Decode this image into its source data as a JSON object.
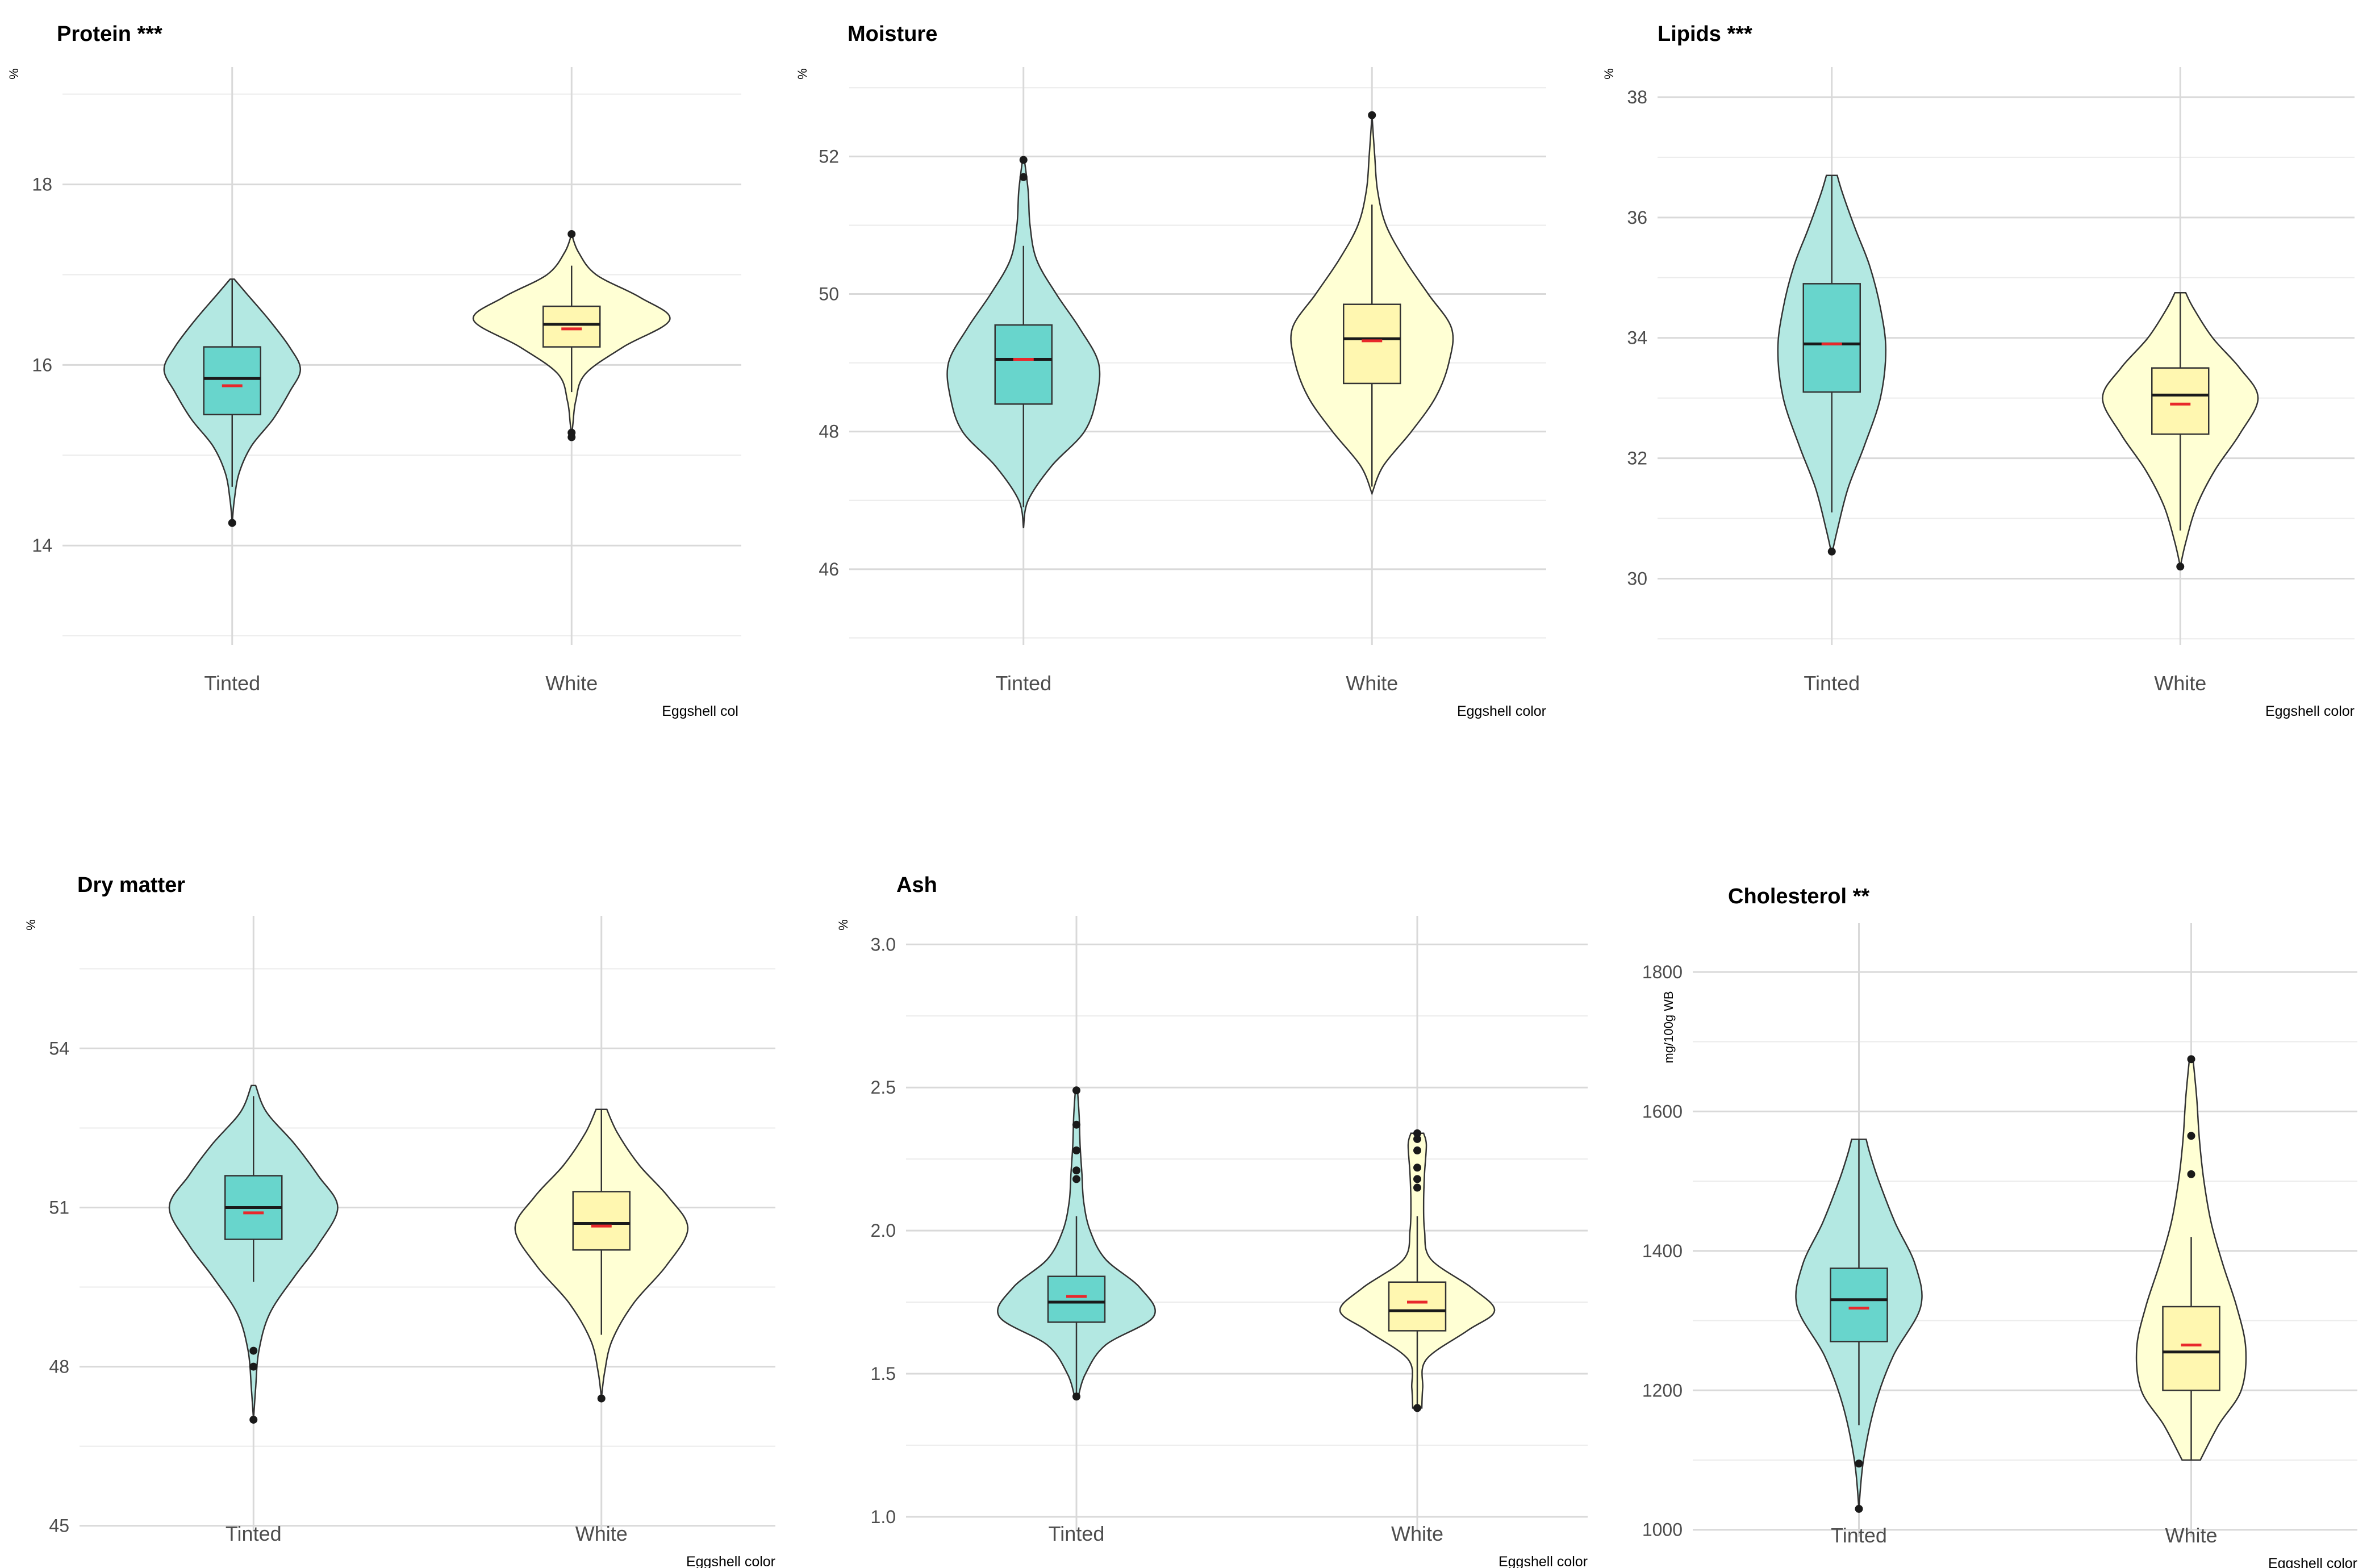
{
  "chart_data": [
    {
      "type": "violin",
      "title": "Protein ***",
      "ylabel": "%",
      "xlabel": "Eggshell col",
      "categories": [
        "Tinted",
        "White"
      ],
      "ylim": [
        12.9,
        19.3
      ],
      "yticks": [
        14,
        16,
        18
      ],
      "ytick_labels": [
        "14",
        "16",
        "18"
      ],
      "grid_minor": [
        13,
        15,
        17,
        19
      ],
      "colors": [
        "#b3e8e2",
        "#ffffd4"
      ],
      "box_colors": [
        "#68d5cc",
        "#fff7b0"
      ],
      "series": [
        {
          "name": "Tinted",
          "violin": [
            [
              14.25,
              0
            ],
            [
              14.5,
              0.015
            ],
            [
              14.8,
              0.05
            ],
            [
              15.1,
              0.14
            ],
            [
              15.4,
              0.3
            ],
            [
              15.7,
              0.42
            ],
            [
              15.95,
              0.5
            ],
            [
              16.2,
              0.42
            ],
            [
              16.5,
              0.27
            ],
            [
              16.8,
              0.1
            ],
            [
              16.95,
              0.015
            ]
          ],
          "box": {
            "whisker_low": 14.65,
            "q1": 15.45,
            "median": 15.85,
            "q3": 16.2,
            "whisker_high": 16.95,
            "mean": 15.77
          },
          "outliers": [
            14.25
          ]
        },
        {
          "name": "White",
          "violin": [
            [
              15.2,
              0
            ],
            [
              15.35,
              0.01
            ],
            [
              15.6,
              0.03
            ],
            [
              15.9,
              0.1
            ],
            [
              16.2,
              0.38
            ],
            [
              16.5,
              0.72
            ],
            [
              16.75,
              0.5
            ],
            [
              17.0,
              0.18
            ],
            [
              17.25,
              0.05
            ],
            [
              17.45,
              0
            ]
          ],
          "box": {
            "whisker_low": 15.7,
            "q1": 16.2,
            "median": 16.45,
            "q3": 16.65,
            "whisker_high": 17.1,
            "mean": 16.4
          },
          "outliers": [
            15.2,
            15.25,
            17.45
          ]
        }
      ]
    },
    {
      "type": "violin",
      "title": "Moisture",
      "ylabel": "%",
      "xlabel": "Eggshell color",
      "categories": [
        "Tinted",
        "White"
      ],
      "ylim": [
        44.9,
        53.3
      ],
      "yticks": [
        46,
        48,
        50,
        52
      ],
      "ytick_labels": [
        "46",
        "48",
        "50",
        "52"
      ],
      "grid_minor": [
        45,
        47,
        49,
        51,
        53
      ],
      "colors": [
        "#b3e8e2",
        "#ffffd4"
      ],
      "box_colors": [
        "#68d5cc",
        "#fff7b0"
      ],
      "series": [
        {
          "name": "Tinted",
          "violin": [
            [
              46.6,
              0
            ],
            [
              47.0,
              0.05
            ],
            [
              47.5,
              0.3
            ],
            [
              48.0,
              0.65
            ],
            [
              48.5,
              0.78
            ],
            [
              49.0,
              0.8
            ],
            [
              49.5,
              0.6
            ],
            [
              50.0,
              0.35
            ],
            [
              50.5,
              0.14
            ],
            [
              51.0,
              0.07
            ],
            [
              51.5,
              0.05
            ],
            [
              51.95,
              0.01
            ]
          ],
          "box": {
            "whisker_low": 46.9,
            "q1": 48.4,
            "median": 49.05,
            "q3": 49.55,
            "whisker_high": 50.7,
            "mean": 49.05
          },
          "outliers": [
            51.7,
            51.95
          ]
        },
        {
          "name": "White",
          "violin": [
            [
              47.1,
              0
            ],
            [
              47.5,
              0.12
            ],
            [
              48.0,
              0.42
            ],
            [
              48.5,
              0.68
            ],
            [
              49.0,
              0.82
            ],
            [
              49.5,
              0.85
            ],
            [
              50.0,
              0.6
            ],
            [
              50.5,
              0.35
            ],
            [
              51.0,
              0.15
            ],
            [
              51.5,
              0.06
            ],
            [
              52.0,
              0.03
            ],
            [
              52.6,
              0
            ]
          ],
          "box": {
            "whisker_low": 47.2,
            "q1": 48.7,
            "median": 49.35,
            "q3": 49.85,
            "whisker_high": 51.3,
            "mean": 49.32
          },
          "outliers": [
            52.6
          ]
        }
      ]
    },
    {
      "type": "violin",
      "title": "Lipids ***",
      "ylabel": "%",
      "xlabel": "Eggshell color",
      "categories": [
        "Tinted",
        "White"
      ],
      "ylim": [
        28.9,
        38.5
      ],
      "yticks": [
        30,
        32,
        34,
        36,
        38
      ],
      "ytick_labels": [
        "30",
        "32",
        "34",
        "36",
        "38"
      ],
      "grid_minor": [
        29,
        31,
        33,
        35,
        37
      ],
      "colors": [
        "#b3e8e2",
        "#ffffd4"
      ],
      "box_colors": [
        "#68d5cc",
        "#fff7b0"
      ],
      "series": [
        {
          "name": "Tinted",
          "violin": [
            [
              30.4,
              0
            ],
            [
              30.8,
              0.05
            ],
            [
              31.5,
              0.15
            ],
            [
              32.2,
              0.3
            ],
            [
              33.0,
              0.45
            ],
            [
              33.8,
              0.5
            ],
            [
              34.5,
              0.45
            ],
            [
              35.2,
              0.35
            ],
            [
              35.8,
              0.22
            ],
            [
              36.4,
              0.1
            ],
            [
              36.7,
              0.05
            ]
          ],
          "box": {
            "whisker_low": 31.1,
            "q1": 33.1,
            "median": 33.9,
            "q3": 34.9,
            "whisker_high": 36.7,
            "mean": 33.9
          },
          "outliers": [
            30.45
          ]
        },
        {
          "name": "White",
          "violin": [
            [
              30.2,
              0
            ],
            [
              30.6,
              0.05
            ],
            [
              31.2,
              0.15
            ],
            [
              31.8,
              0.32
            ],
            [
              32.4,
              0.55
            ],
            [
              33.0,
              0.72
            ],
            [
              33.5,
              0.55
            ],
            [
              34.0,
              0.3
            ],
            [
              34.5,
              0.12
            ],
            [
              34.75,
              0.05
            ]
          ],
          "box": {
            "whisker_low": 30.8,
            "q1": 32.4,
            "median": 33.05,
            "q3": 33.5,
            "whisker_high": 34.75,
            "mean": 32.9
          },
          "outliers": [
            30.2
          ]
        }
      ]
    },
    {
      "type": "violin",
      "title": "Dry matter",
      "ylabel": "%",
      "xlabel": "Eggshell color",
      "categories": [
        "Tinted",
        "White"
      ],
      "ylim": [
        44.9,
        56.5
      ],
      "yticks": [
        45,
        48,
        51,
        54
      ],
      "ytick_labels": [
        "45",
        "48",
        "51",
        "54"
      ],
      "grid_minor": [
        46.5,
        49.5,
        52.5,
        55.5
      ],
      "colors": [
        "#b3e8e2",
        "#ffffd4"
      ],
      "box_colors": [
        "#68d5cc",
        "#fff7b0"
      ],
      "series": [
        {
          "name": "Tinted",
          "violin": [
            [
              47.0,
              0
            ],
            [
              47.6,
              0.02
            ],
            [
              48.3,
              0.05
            ],
            [
              49.0,
              0.15
            ],
            [
              49.7,
              0.38
            ],
            [
              50.3,
              0.6
            ],
            [
              51.0,
              0.78
            ],
            [
              51.6,
              0.6
            ],
            [
              52.2,
              0.38
            ],
            [
              52.8,
              0.12
            ],
            [
              53.3,
              0.02
            ]
          ],
          "box": {
            "whisker_low": 49.6,
            "q1": 50.4,
            "median": 51.0,
            "q3": 51.6,
            "whisker_high": 53.1,
            "mean": 50.9
          },
          "outliers": [
            47.0,
            48.0,
            48.3
          ]
        },
        {
          "name": "White",
          "violin": [
            [
              47.4,
              0
            ],
            [
              47.9,
              0.03
            ],
            [
              48.5,
              0.1
            ],
            [
              49.2,
              0.3
            ],
            [
              49.9,
              0.6
            ],
            [
              50.6,
              0.8
            ],
            [
              51.2,
              0.62
            ],
            [
              51.8,
              0.35
            ],
            [
              52.4,
              0.15
            ],
            [
              52.85,
              0.05
            ]
          ],
          "box": {
            "whisker_low": 48.6,
            "q1": 50.2,
            "median": 50.7,
            "q3": 51.3,
            "whisker_high": 52.85,
            "mean": 50.65
          },
          "outliers": [
            47.4
          ]
        }
      ]
    },
    {
      "type": "violin",
      "title": "Ash",
      "ylabel": "%",
      "xlabel": "Eggshell color",
      "categories": [
        "Tinted",
        "White"
      ],
      "ylim": [
        0.95,
        3.1
      ],
      "yticks": [
        1.0,
        1.5,
        2.0,
        2.5,
        3.0
      ],
      "ytick_labels": [
        "1.0",
        "1.5",
        "2.0",
        "2.5",
        "3.0"
      ],
      "grid_minor": [
        1.25,
        1.75,
        2.25,
        2.75
      ],
      "colors": [
        "#b3e8e2",
        "#ffffd4"
      ],
      "box_colors": [
        "#68d5cc",
        "#fff7b0"
      ],
      "series": [
        {
          "name": "Tinted",
          "violin": [
            [
              1.42,
              0.02
            ],
            [
              1.5,
              0.1
            ],
            [
              1.6,
              0.32
            ],
            [
              1.7,
              0.85
            ],
            [
              1.8,
              0.7
            ],
            [
              1.9,
              0.32
            ],
            [
              2.0,
              0.15
            ],
            [
              2.1,
              0.08
            ],
            [
              2.2,
              0.06
            ],
            [
              2.3,
              0.04
            ],
            [
              2.4,
              0.03
            ],
            [
              2.5,
              0.01
            ]
          ],
          "box": {
            "whisker_low": 1.42,
            "q1": 1.68,
            "median": 1.75,
            "q3": 1.84,
            "whisker_high": 2.05,
            "mean": 1.77
          },
          "outliers": [
            1.42,
            2.18,
            2.21,
            2.28,
            2.37,
            2.49
          ]
        },
        {
          "name": "White",
          "violin": [
            [
              1.38,
              0.05
            ],
            [
              1.45,
              0.06
            ],
            [
              1.55,
              0.1
            ],
            [
              1.65,
              0.55
            ],
            [
              1.72,
              0.85
            ],
            [
              1.8,
              0.6
            ],
            [
              1.9,
              0.15
            ],
            [
              2.0,
              0.08
            ],
            [
              2.1,
              0.07
            ],
            [
              2.2,
              0.08
            ],
            [
              2.3,
              0.1
            ],
            [
              2.34,
              0.07
            ]
          ],
          "box": {
            "whisker_low": 1.38,
            "q1": 1.65,
            "median": 1.72,
            "q3": 1.82,
            "whisker_high": 2.05,
            "mean": 1.75
          },
          "outliers": [
            1.38,
            2.15,
            2.18,
            2.22,
            2.28,
            2.32,
            2.34
          ]
        }
      ]
    },
    {
      "type": "violin",
      "title": "Cholesterol  **",
      "ylabel": "mg/100g WB",
      "xlabel": "Eggshell color",
      "categories": [
        "Tinted",
        "White"
      ],
      "ylim": [
        990,
        1870
      ],
      "yticks": [
        1000,
        1200,
        1400,
        1600,
        1800
      ],
      "ytick_labels": [
        "1000",
        "1200",
        "1400",
        "1600",
        "1800"
      ],
      "grid_minor": [
        1100,
        1300,
        1500,
        1700
      ],
      "colors": [
        "#b3e8e2",
        "#ffffd4"
      ],
      "box_colors": [
        "#68d5cc",
        "#fff7b0"
      ],
      "series": [
        {
          "name": "Tinted",
          "violin": [
            [
              1030,
              0
            ],
            [
              1100,
              0.05
            ],
            [
              1180,
              0.18
            ],
            [
              1250,
              0.38
            ],
            [
              1320,
              0.68
            ],
            [
              1380,
              0.62
            ],
            [
              1440,
              0.4
            ],
            [
              1500,
              0.22
            ],
            [
              1540,
              0.12
            ],
            [
              1560,
              0.08
            ]
          ],
          "box": {
            "whisker_low": 1150,
            "q1": 1270,
            "median": 1330,
            "q3": 1375,
            "whisker_high": 1560,
            "mean": 1318
          },
          "outliers": [
            1030,
            1095
          ]
        },
        {
          "name": "White",
          "violin": [
            [
              1100,
              0.1
            ],
            [
              1150,
              0.3
            ],
            [
              1200,
              0.55
            ],
            [
              1260,
              0.6
            ],
            [
              1320,
              0.5
            ],
            [
              1380,
              0.35
            ],
            [
              1440,
              0.22
            ],
            [
              1500,
              0.14
            ],
            [
              1560,
              0.09
            ],
            [
              1620,
              0.06
            ],
            [
              1675,
              0.02
            ]
          ],
          "box": {
            "whisker_low": 1100,
            "q1": 1200,
            "median": 1255,
            "q3": 1320,
            "whisker_high": 1420,
            "mean": 1265
          },
          "outliers": [
            1510,
            1565,
            1675
          ]
        }
      ]
    }
  ]
}
